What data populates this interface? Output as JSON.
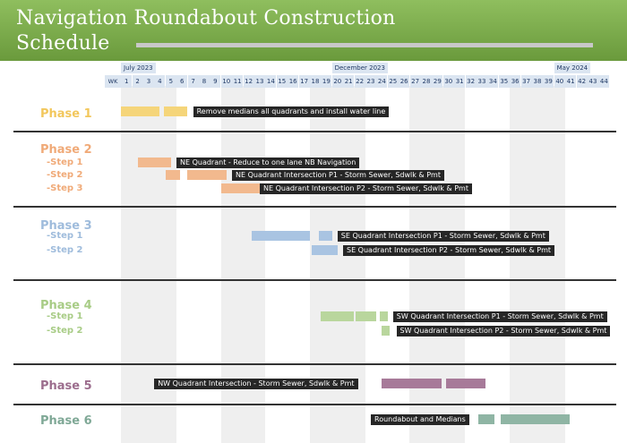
{
  "header": {
    "title_line1": "Navigation Roundabout Construction",
    "title_line2": "Schedule"
  },
  "timeline": {
    "wk_label": "WK",
    "weeks": [
      "1",
      "2",
      "3",
      "4",
      "5",
      "6",
      "7",
      "8",
      "9",
      "10",
      "11",
      "12",
      "13",
      "14",
      "15",
      "16",
      "17",
      "18",
      "19",
      "20",
      "21",
      "22",
      "23",
      "24",
      "25",
      "26",
      "27",
      "28",
      "29",
      "30",
      "31",
      "32",
      "33",
      "34",
      "35",
      "36",
      "37",
      "38",
      "39",
      "40",
      "41",
      "42",
      "43",
      "44"
    ],
    "months": [
      {
        "label": "July 2023",
        "week": 1
      },
      {
        "label": "December 2023",
        "week": 20
      },
      {
        "label": "May 2024",
        "week": 40
      }
    ],
    "shaded_week_ranges": [
      [
        1,
        5
      ],
      [
        10,
        13
      ],
      [
        18,
        22
      ],
      [
        27,
        31
      ],
      [
        36,
        40
      ]
    ]
  },
  "colors": {
    "phase1": "#f5d57a",
    "phase2": "#f2b98e",
    "phase3": "#a9c4e2",
    "phase4": "#b9d69d",
    "phase5": "#a77a99",
    "phase6": "#8fb5a4",
    "phase1_text": "#f2c75c",
    "phase2_text": "#f0aa78",
    "phase3_text": "#9fbcdc",
    "phase4_text": "#a8cc86",
    "phase5_text": "#9c6d8d",
    "phase6_text": "#7fa896"
  },
  "phases": [
    {
      "name": "Phase 1",
      "color": "phase1",
      "rows": [
        {
          "step": "",
          "bars": [
            [
              1,
              4.5
            ],
            [
              4.9,
              7
            ]
          ],
          "label": "Remove medians all quadrants and install water line",
          "label_week": 7.5
        }
      ]
    },
    {
      "name": "Phase 2",
      "color": "phase2",
      "rows": [
        {
          "step": "-Step 1",
          "bars": [
            [
              2.5,
              5.5
            ]
          ],
          "label": "NE Quadrant - Reduce to one lane NB Navigation",
          "label_week": 6
        },
        {
          "step": "-Step 2",
          "bars": [
            [
              5,
              6.3
            ],
            [
              7,
              10.5
            ]
          ],
          "label": "NE Quadrant Intersection P1 - Storm Sewer, Sdwlk & Pmt",
          "label_week": 11
        },
        {
          "step": "-Step 3",
          "bars": [
            [
              10,
              13.5
            ]
          ],
          "label": "NE Quadrant Intersection P2 - Storm Sewer, Sdwlk & Pmt",
          "label_week": 13.5
        }
      ]
    },
    {
      "name": "Phase 3",
      "color": "phase3",
      "rows": [
        {
          "step": "-Step 1",
          "bars": [
            [
              12.8,
              18
            ],
            [
              18.8,
              20
            ]
          ],
          "label": "SE Quadrant Intersection P1 - Storm Sewer, Sdwlk & Pmt",
          "label_week": 20.5
        },
        {
          "step": "-Step 2",
          "bars": [
            [
              18.2,
              20.5
            ]
          ],
          "label": "SE Quadrant Intersection P2 - Storm Sewer, Sdwlk & Pmt",
          "label_week": 21
        }
      ]
    },
    {
      "name": "Phase 4",
      "color": "phase4",
      "rows": [
        {
          "step": "-Step 1",
          "bars": [
            [
              19,
              22
            ],
            [
              22.1,
              24
            ],
            [
              24.3,
              25
            ]
          ],
          "label": "SW Quadrant Intersection P1 - Storm Sewer, Sdwlk & Pmt",
          "label_week": 25.5
        },
        {
          "step": "-Step 2",
          "bars": [
            [
              24.5,
              25.2
            ]
          ],
          "label": "SW Quadrant Intersection P2 - Storm Sewer, Sdwlk & Pmt",
          "label_week": 25.8
        }
      ]
    },
    {
      "name": "Phase 5",
      "color": "phase5",
      "rows": [
        {
          "step": "",
          "bars": [
            [
              24.5,
              29.9
            ],
            [
              30.3,
              33.8
            ]
          ],
          "label": "NW Quadrant Intersection - Storm Sewer, Sdwlk & Pmt",
          "label_week": 4
        }
      ]
    },
    {
      "name": "Phase 6",
      "color": "phase6",
      "rows": [
        {
          "step": "",
          "bars": [
            [
              33.2,
              34.6
            ],
            [
              35.2,
              41.4
            ]
          ],
          "label": "Roundabout and Medians",
          "label_week": 23.5
        }
      ]
    }
  ]
}
